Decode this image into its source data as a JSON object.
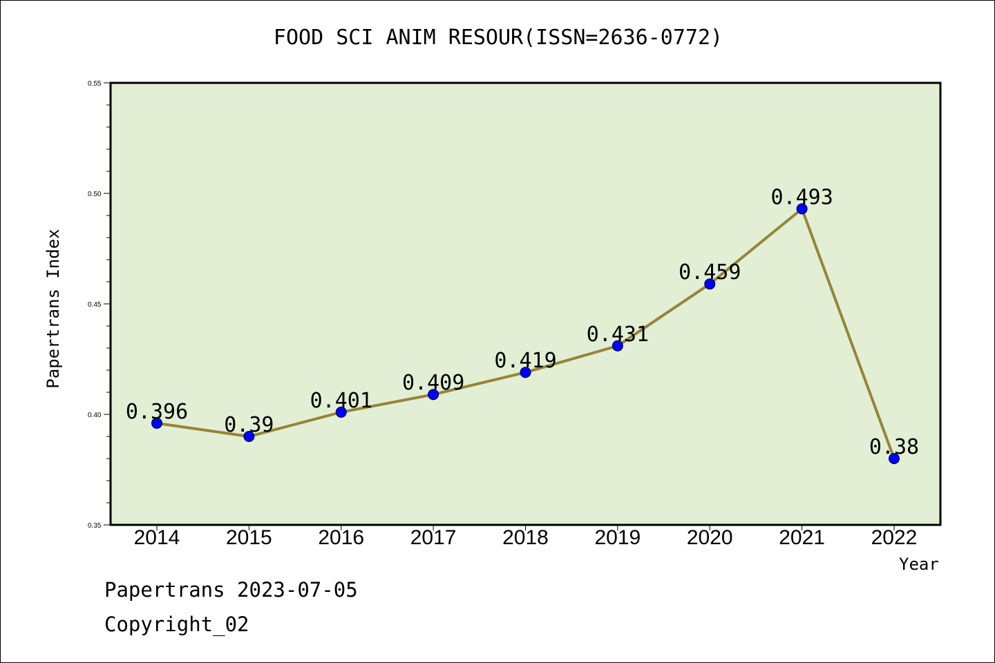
{
  "chart_data": {
    "type": "line",
    "title": "FOOD SCI ANIM RESOUR(ISSN=2636-0772)",
    "xlabel": "Year",
    "ylabel": "Papertrans Index",
    "x": [
      "2014",
      "2015",
      "2016",
      "2017",
      "2018",
      "2019",
      "2020",
      "2021",
      "2022"
    ],
    "series": [
      {
        "values": [
          0.396,
          0.39,
          0.401,
          0.409,
          0.419,
          0.431,
          0.459,
          0.493,
          0.38
        ],
        "labels": [
          "0.396",
          "0.39",
          "0.401",
          "0.409",
          "0.419",
          "0.431",
          "0.459",
          "0.493",
          "0.38"
        ]
      }
    ],
    "ylim": [
      0.35,
      0.55
    ],
    "yticks": [
      "0.35",
      "0.40",
      "0.45",
      "0.50",
      "0.55"
    ],
    "grid": false,
    "colors": {
      "plot_background": "#e2efd5",
      "line": "#958537",
      "marker": "#0000ff"
    }
  },
  "footer": {
    "line1": "Papertrans 2023-07-05",
    "line2": "Copyright_02"
  }
}
